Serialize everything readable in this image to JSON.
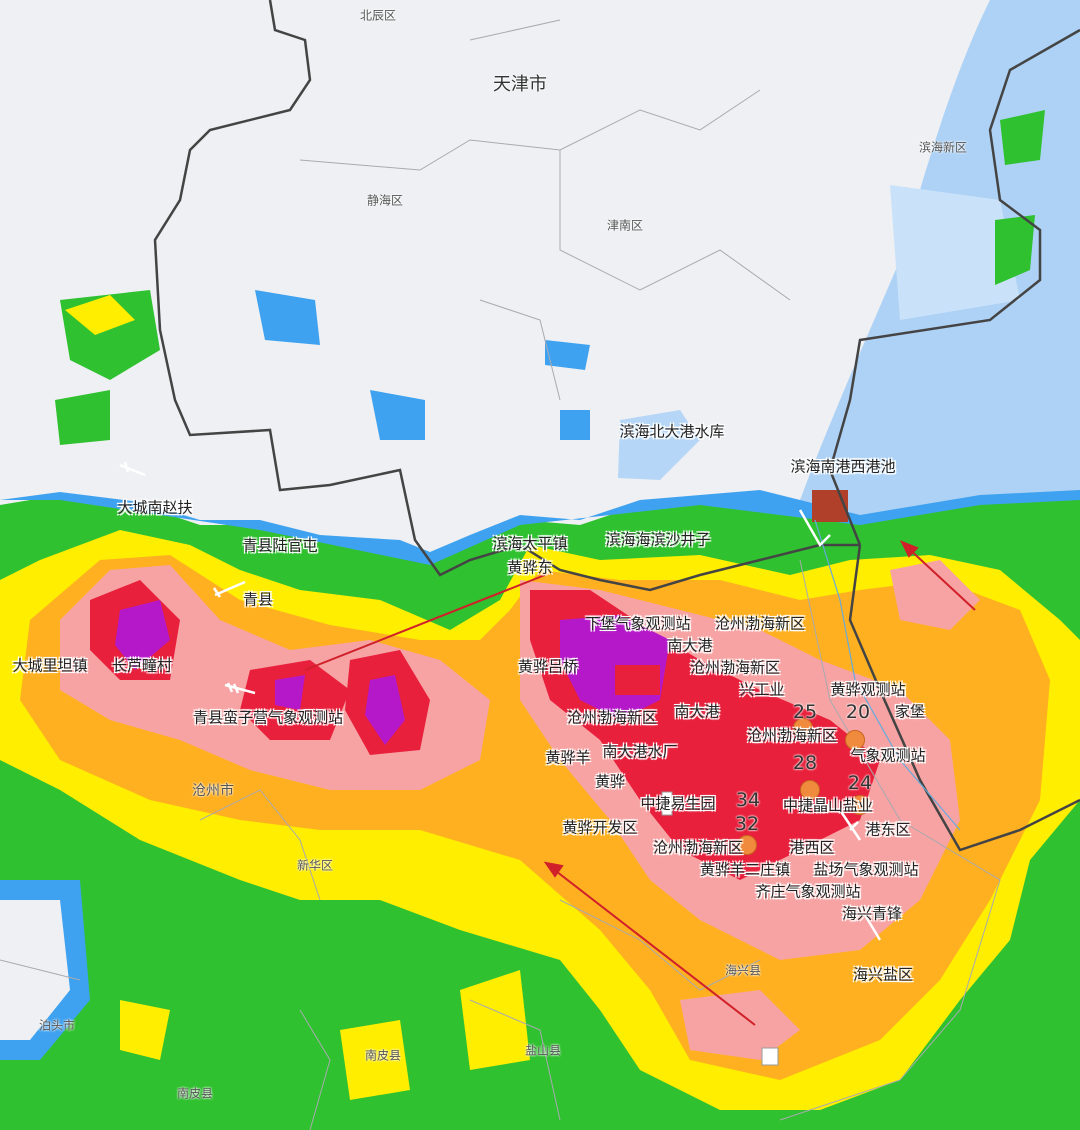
{
  "map": {
    "colors": {
      "land": "#eef0f3",
      "sea": "#aed2f5",
      "light_rain": "#2fc12f",
      "moderate": "#ffee00",
      "heavy": "#ffb020",
      "very_heavy": "#f7a3a3",
      "intense": "#e8203c",
      "extreme": "#b418c8",
      "boundary": "#444444",
      "arrow": "#d0202a",
      "station_dot": "#f08a3c"
    },
    "regions": [
      {
        "name": "北辰区"
      },
      {
        "name": "天津市"
      },
      {
        "name": "滨海新区"
      },
      {
        "name": "静海区"
      },
      {
        "name": "津南区"
      },
      {
        "name": "沧州市"
      },
      {
        "name": "新华区"
      },
      {
        "name": "海兴县"
      },
      {
        "name": "泊头市"
      },
      {
        "name": "南皮县"
      },
      {
        "name": "盐山县"
      },
      {
        "name": "南皮县"
      }
    ],
    "stations": [
      {
        "name": "滨海北大港水库"
      },
      {
        "name": "滨海南港西港池"
      },
      {
        "name": "大城南赵扶"
      },
      {
        "name": "青县陆官屯"
      },
      {
        "name": "滨海太平镇"
      },
      {
        "name": "滨海海滨沙井子"
      },
      {
        "name": "黄骅东"
      },
      {
        "name": "青县"
      },
      {
        "name": "大城里坦镇"
      },
      {
        "name": "长芦疃村"
      },
      {
        "name": "黄骅吕桥"
      },
      {
        "name": "青县蛮子营气象观测站"
      },
      {
        "name": "下堡气象观测站"
      },
      {
        "name": "沧州渤海新区"
      },
      {
        "name": "南大港"
      },
      {
        "name": "沧州渤海新区"
      },
      {
        "name": "兴工业"
      },
      {
        "name": "黄骅观测站"
      },
      {
        "name": "沧州渤海新区"
      },
      {
        "name": "南大港"
      },
      {
        "name": "沧州渤海新区"
      },
      {
        "name": "南大港水厂"
      },
      {
        "name": "黄骅羊"
      },
      {
        "name": "气象观测站"
      },
      {
        "name": "黄骅"
      },
      {
        "name": "中捷易生园"
      },
      {
        "name": "中捷晶山盐业"
      },
      {
        "name": "黄骅开发区"
      },
      {
        "name": "港东区"
      },
      {
        "name": "沧州渤海新区"
      },
      {
        "name": "港西区"
      },
      {
        "name": "黄骅羊二庄镇"
      },
      {
        "name": "盐场气象观测站"
      },
      {
        "name": "齐庄气象观测站"
      },
      {
        "name": "海兴青锋"
      },
      {
        "name": "海兴盐区"
      },
      {
        "name": "家堡"
      }
    ],
    "values": [
      "25",
      "20",
      "28",
      "24",
      "34",
      "32"
    ]
  }
}
